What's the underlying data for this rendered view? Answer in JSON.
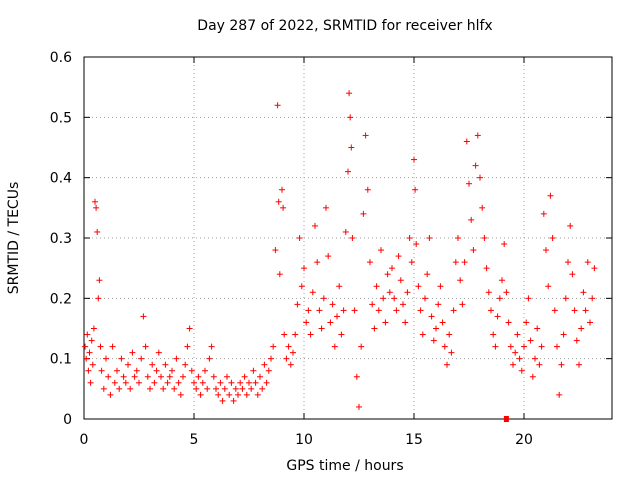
{
  "chart_data": {
    "type": "scatter",
    "title": "Day 287 of 2022, SRMTID for receiver hlfx",
    "xlabel": "GPS time / hours",
    "ylabel": "SRMTID / TECUs",
    "xlim": [
      0,
      24
    ],
    "ylim": [
      0,
      0.6
    ],
    "x_ticks": [
      0,
      5,
      10,
      15,
      20
    ],
    "x_tick_labels": [
      "0",
      "5",
      "10",
      "15",
      "20"
    ],
    "y_ticks": [
      0,
      0.1,
      0.2,
      0.3,
      0.4,
      0.5,
      0.6
    ],
    "y_tick_labels": [
      "0",
      "0.1",
      "0.2",
      "0.3",
      "0.4",
      "0.5",
      "0.6"
    ],
    "grid": true,
    "marker": "+",
    "color": "#ff0000",
    "series": [
      {
        "name": "SRMTID",
        "points": [
          [
            0.05,
            0.12
          ],
          [
            0.1,
            0.1
          ],
          [
            0.15,
            0.14
          ],
          [
            0.2,
            0.08
          ],
          [
            0.25,
            0.11
          ],
          [
            0.3,
            0.06
          ],
          [
            0.35,
            0.13
          ],
          [
            0.4,
            0.09
          ],
          [
            0.45,
            0.15
          ],
          [
            0.5,
            0.36
          ],
          [
            0.55,
            0.35
          ],
          [
            0.6,
            0.31
          ],
          [
            0.65,
            0.2
          ],
          [
            0.7,
            0.23
          ],
          [
            0.75,
            0.12
          ],
          [
            0.8,
            0.08
          ],
          [
            0.9,
            0.05
          ],
          [
            1.0,
            0.1
          ],
          [
            1.1,
            0.07
          ],
          [
            1.2,
            0.04
          ],
          [
            1.3,
            0.12
          ],
          [
            1.4,
            0.06
          ],
          [
            1.5,
            0.08
          ],
          [
            1.6,
            0.05
          ],
          [
            1.7,
            0.1
          ],
          [
            1.8,
            0.07
          ],
          [
            1.9,
            0.06
          ],
          [
            2.0,
            0.09
          ],
          [
            2.1,
            0.05
          ],
          [
            2.2,
            0.11
          ],
          [
            2.3,
            0.07
          ],
          [
            2.4,
            0.08
          ],
          [
            2.5,
            0.06
          ],
          [
            2.6,
            0.1
          ],
          [
            2.7,
            0.17
          ],
          [
            2.8,
            0.12
          ],
          [
            2.9,
            0.07
          ],
          [
            3.0,
            0.05
          ],
          [
            3.1,
            0.09
          ],
          [
            3.2,
            0.06
          ],
          [
            3.3,
            0.08
          ],
          [
            3.4,
            0.11
          ],
          [
            3.5,
            0.07
          ],
          [
            3.6,
            0.05
          ],
          [
            3.7,
            0.09
          ],
          [
            3.8,
            0.06
          ],
          [
            3.9,
            0.07
          ],
          [
            4.0,
            0.08
          ],
          [
            4.1,
            0.05
          ],
          [
            4.2,
            0.1
          ],
          [
            4.3,
            0.06
          ],
          [
            4.4,
            0.04
          ],
          [
            4.5,
            0.07
          ],
          [
            4.6,
            0.09
          ],
          [
            4.7,
            0.12
          ],
          [
            4.8,
            0.15
          ],
          [
            4.9,
            0.08
          ],
          [
            5.0,
            0.06
          ],
          [
            5.1,
            0.05
          ],
          [
            5.2,
            0.07
          ],
          [
            5.3,
            0.04
          ],
          [
            5.4,
            0.06
          ],
          [
            5.5,
            0.08
          ],
          [
            5.6,
            0.05
          ],
          [
            5.7,
            0.1
          ],
          [
            5.8,
            0.12
          ],
          [
            5.9,
            0.07
          ],
          [
            6.0,
            0.05
          ],
          [
            6.1,
            0.04
          ],
          [
            6.2,
            0.06
          ],
          [
            6.3,
            0.03
          ],
          [
            6.4,
            0.05
          ],
          [
            6.5,
            0.07
          ],
          [
            6.6,
            0.04
          ],
          [
            6.7,
            0.06
          ],
          [
            6.8,
            0.03
          ],
          [
            6.9,
            0.05
          ],
          [
            7.0,
            0.04
          ],
          [
            7.1,
            0.06
          ],
          [
            7.2,
            0.05
          ],
          [
            7.3,
            0.07
          ],
          [
            7.4,
            0.04
          ],
          [
            7.5,
            0.06
          ],
          [
            7.6,
            0.05
          ],
          [
            7.7,
            0.08
          ],
          [
            7.8,
            0.06
          ],
          [
            7.9,
            0.04
          ],
          [
            8.0,
            0.07
          ],
          [
            8.1,
            0.05
          ],
          [
            8.2,
            0.09
          ],
          [
            8.3,
            0.06
          ],
          [
            8.4,
            0.08
          ],
          [
            8.5,
            0.1
          ],
          [
            8.6,
            0.12
          ],
          [
            8.7,
            0.28
          ],
          [
            8.8,
            0.52
          ],
          [
            8.85,
            0.36
          ],
          [
            8.9,
            0.24
          ],
          [
            9.0,
            0.38
          ],
          [
            9.05,
            0.35
          ],
          [
            9.1,
            0.14
          ],
          [
            9.2,
            0.1
          ],
          [
            9.3,
            0.12
          ],
          [
            9.4,
            0.09
          ],
          [
            9.5,
            0.11
          ],
          [
            9.6,
            0.14
          ],
          [
            9.7,
            0.19
          ],
          [
            9.8,
            0.3
          ],
          [
            9.9,
            0.22
          ],
          [
            10.0,
            0.25
          ],
          [
            10.1,
            0.16
          ],
          [
            10.2,
            0.18
          ],
          [
            10.3,
            0.14
          ],
          [
            10.4,
            0.21
          ],
          [
            10.5,
            0.32
          ],
          [
            10.6,
            0.26
          ],
          [
            10.7,
            0.18
          ],
          [
            10.8,
            0.15
          ],
          [
            10.9,
            0.2
          ],
          [
            11.0,
            0.35
          ],
          [
            11.1,
            0.27
          ],
          [
            11.2,
            0.16
          ],
          [
            11.3,
            0.19
          ],
          [
            11.4,
            0.12
          ],
          [
            11.5,
            0.17
          ],
          [
            11.6,
            0.22
          ],
          [
            11.7,
            0.14
          ],
          [
            11.8,
            0.18
          ],
          [
            11.9,
            0.31
          ],
          [
            12.0,
            0.41
          ],
          [
            12.05,
            0.54
          ],
          [
            12.1,
            0.5
          ],
          [
            12.15,
            0.45
          ],
          [
            12.2,
            0.3
          ],
          [
            12.3,
            0.18
          ],
          [
            12.4,
            0.07
          ],
          [
            12.5,
            0.02
          ],
          [
            12.6,
            0.12
          ],
          [
            12.7,
            0.34
          ],
          [
            12.8,
            0.47
          ],
          [
            12.9,
            0.38
          ],
          [
            13.0,
            0.26
          ],
          [
            13.1,
            0.19
          ],
          [
            13.2,
            0.15
          ],
          [
            13.3,
            0.22
          ],
          [
            13.4,
            0.18
          ],
          [
            13.5,
            0.28
          ],
          [
            13.6,
            0.2
          ],
          [
            13.7,
            0.16
          ],
          [
            13.8,
            0.24
          ],
          [
            13.9,
            0.21
          ],
          [
            14.0,
            0.25
          ],
          [
            14.1,
            0.2
          ],
          [
            14.2,
            0.18
          ],
          [
            14.3,
            0.27
          ],
          [
            14.4,
            0.23
          ],
          [
            14.5,
            0.19
          ],
          [
            14.6,
            0.16
          ],
          [
            14.7,
            0.21
          ],
          [
            14.8,
            0.3
          ],
          [
            14.9,
            0.26
          ],
          [
            15.0,
            0.43
          ],
          [
            15.05,
            0.38
          ],
          [
            15.1,
            0.29
          ],
          [
            15.2,
            0.22
          ],
          [
            15.3,
            0.18
          ],
          [
            15.4,
            0.14
          ],
          [
            15.5,
            0.2
          ],
          [
            15.6,
            0.24
          ],
          [
            15.7,
            0.3
          ],
          [
            15.8,
            0.17
          ],
          [
            15.9,
            0.13
          ],
          [
            16.0,
            0.15
          ],
          [
            16.1,
            0.19
          ],
          [
            16.2,
            0.22
          ],
          [
            16.3,
            0.16
          ],
          [
            16.4,
            0.12
          ],
          [
            16.5,
            0.09
          ],
          [
            16.6,
            0.14
          ],
          [
            16.7,
            0.11
          ],
          [
            16.8,
            0.18
          ],
          [
            16.9,
            0.26
          ],
          [
            17.0,
            0.3
          ],
          [
            17.1,
            0.23
          ],
          [
            17.2,
            0.19
          ],
          [
            17.3,
            0.26
          ],
          [
            17.4,
            0.46
          ],
          [
            17.5,
            0.39
          ],
          [
            17.6,
            0.33
          ],
          [
            17.7,
            0.28
          ],
          [
            17.8,
            0.42
          ],
          [
            17.9,
            0.47
          ],
          [
            18.0,
            0.4
          ],
          [
            18.1,
            0.35
          ],
          [
            18.2,
            0.3
          ],
          [
            18.3,
            0.25
          ],
          [
            18.4,
            0.21
          ],
          [
            18.5,
            0.18
          ],
          [
            18.6,
            0.14
          ],
          [
            18.7,
            0.12
          ],
          [
            18.8,
            0.17
          ],
          [
            18.9,
            0.2
          ],
          [
            19.0,
            0.23
          ],
          [
            19.1,
            0.29
          ],
          [
            19.2,
            0.21
          ],
          [
            19.3,
            0.16
          ],
          [
            19.4,
            0.12
          ],
          [
            19.5,
            0.09
          ],
          [
            19.6,
            0.11
          ],
          [
            19.7,
            0.14
          ],
          [
            19.8,
            0.1
          ],
          [
            19.9,
            0.08
          ],
          [
            20.0,
            0.12
          ],
          [
            20.1,
            0.16
          ],
          [
            20.2,
            0.2
          ],
          [
            20.3,
            0.13
          ],
          [
            20.4,
            0.07
          ],
          [
            20.5,
            0.1
          ],
          [
            20.6,
            0.15
          ],
          [
            20.7,
            0.09
          ],
          [
            20.8,
            0.12
          ],
          [
            20.9,
            0.34
          ],
          [
            21.0,
            0.28
          ],
          [
            21.1,
            0.22
          ],
          [
            21.2,
            0.37
          ],
          [
            21.3,
            0.3
          ],
          [
            21.4,
            0.18
          ],
          [
            21.5,
            0.12
          ],
          [
            21.6,
            0.04
          ],
          [
            21.7,
            0.09
          ],
          [
            21.8,
            0.14
          ],
          [
            21.9,
            0.2
          ],
          [
            22.0,
            0.26
          ],
          [
            22.1,
            0.32
          ],
          [
            22.2,
            0.24
          ],
          [
            22.3,
            0.18
          ],
          [
            22.4,
            0.13
          ],
          [
            22.5,
            0.09
          ],
          [
            22.6,
            0.15
          ],
          [
            22.7,
            0.21
          ],
          [
            22.8,
            0.18
          ],
          [
            22.9,
            0.26
          ],
          [
            23.0,
            0.16
          ],
          [
            23.1,
            0.2
          ],
          [
            23.2,
            0.25
          ]
        ]
      }
    ],
    "outlier_marker": {
      "x": 19.2,
      "y": 0.0
    }
  }
}
